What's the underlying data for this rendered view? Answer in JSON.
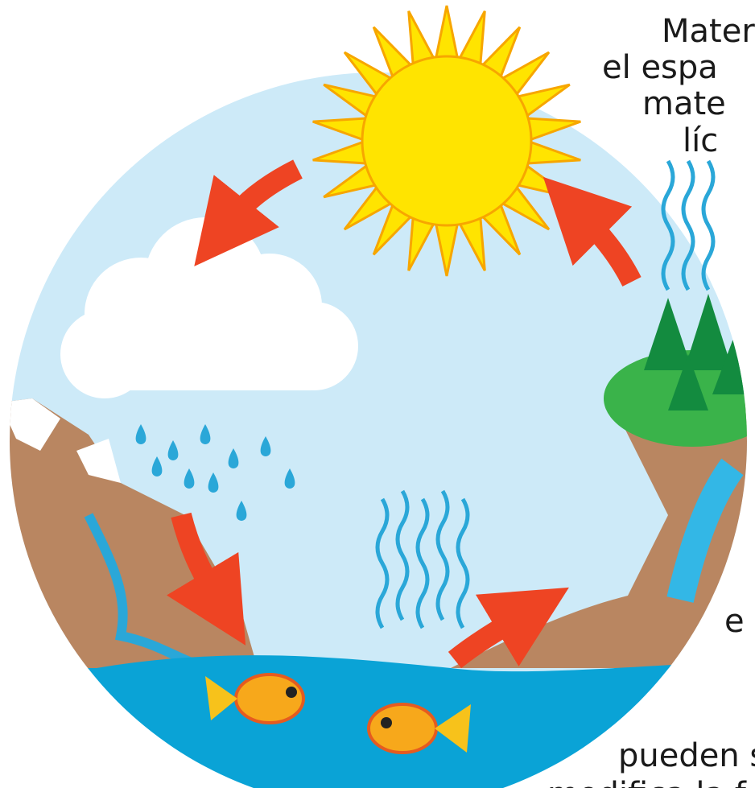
{
  "texts": [
    "Mater",
    "el espa",
    "mate",
    "líc",
    "e",
    "pueden s",
    "modifica la f"
  ]
}
